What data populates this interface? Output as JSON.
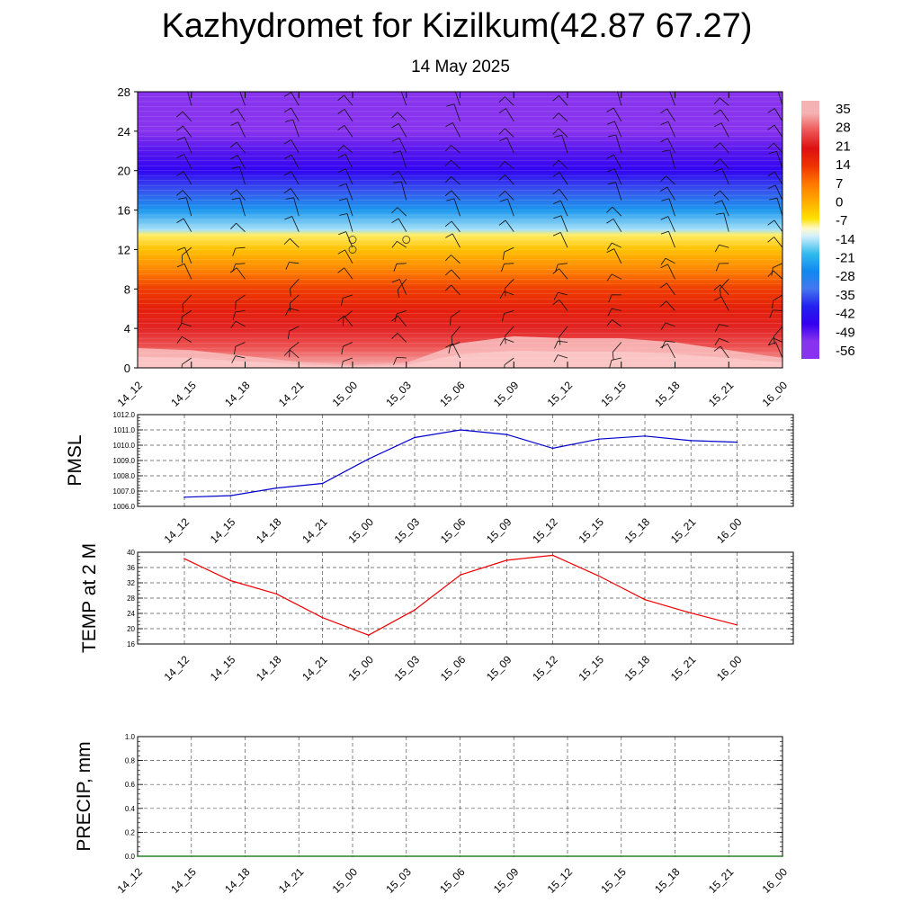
{
  "title": "Kazhydromet for Kizilkum(42.87 67.27)",
  "subtitle": "14 May 2025",
  "chart_data": [
    {
      "type": "heatmap",
      "name": "vertical temperature cross-section",
      "x_ticks": [
        "14_12",
        "14_15",
        "14_18",
        "14_21",
        "15_00",
        "15_03",
        "15_06",
        "15_09",
        "15_12",
        "15_15",
        "15_18",
        "15_21",
        "16_00"
      ],
      "y_ticks": [
        0,
        4,
        8,
        12,
        16,
        20,
        24,
        28
      ],
      "ylim": [
        0,
        28
      ],
      "colorbar_labels": [
        "35",
        "28",
        "21",
        "14",
        "7",
        "0",
        "-7",
        "-14",
        "-21",
        "-28",
        "-35",
        "-42",
        "-49",
        "-56"
      ],
      "colorbar_stops": [
        {
          "value": 35,
          "color": "#f6b2b2"
        },
        {
          "value": 28,
          "color": "#ee5555"
        },
        {
          "value": 21,
          "color": "#dd1111"
        },
        {
          "value": 14,
          "color": "#ee3300"
        },
        {
          "value": 7,
          "color": "#ff7700"
        },
        {
          "value": 0,
          "color": "#ffaa00"
        },
        {
          "value": -7,
          "color": "#ffe000"
        },
        {
          "value": -11,
          "color": "#fffacc"
        },
        {
          "value": -14,
          "color": "#d4f1fb"
        },
        {
          "value": -21,
          "color": "#33bbee"
        },
        {
          "value": -28,
          "color": "#1188ee"
        },
        {
          "value": -35,
          "color": "#4477ee"
        },
        {
          "value": -42,
          "color": "#2222ee"
        },
        {
          "value": -49,
          "color": "#3300f0"
        },
        {
          "value": -56,
          "color": "#8833ee"
        }
      ],
      "temperature_profile": [
        {
          "height": 0,
          "temp": 36
        },
        {
          "height": 2,
          "temp": 28
        },
        {
          "height": 4,
          "temp": 23
        },
        {
          "height": 6,
          "temp": 18
        },
        {
          "height": 8,
          "temp": 13
        },
        {
          "height": 10,
          "temp": 5
        },
        {
          "height": 12,
          "temp": -3
        },
        {
          "height": 13.5,
          "temp": -9
        },
        {
          "height": 14,
          "temp": -16
        },
        {
          "height": 16,
          "temp": -26
        },
        {
          "height": 18,
          "temp": -38
        },
        {
          "height": 20,
          "temp": -48
        },
        {
          "height": 22,
          "temp": -52
        },
        {
          "height": 24,
          "temp": -58
        },
        {
          "height": 28,
          "temp": -60
        }
      ],
      "surface_hot_core": [
        {
          "x_index": 0,
          "warm_depth": 2.0
        },
        {
          "x_index": 1,
          "warm_depth": 1.8
        },
        {
          "x_index": 2,
          "warm_depth": 1.2
        },
        {
          "x_index": 3,
          "warm_depth": 0.6
        },
        {
          "x_index": 4,
          "warm_depth": 0.3
        },
        {
          "x_index": 5,
          "warm_depth": 0.5
        },
        {
          "x_index": 6,
          "warm_depth": 2.5
        },
        {
          "x_index": 7,
          "warm_depth": 3.2
        },
        {
          "x_index": 8,
          "warm_depth": 3.0
        },
        {
          "x_index": 9,
          "warm_depth": 3.0
        },
        {
          "x_index": 10,
          "warm_depth": 2.6
        },
        {
          "x_index": 11,
          "warm_depth": 1.8
        },
        {
          "x_index": 12,
          "warm_depth": 1.0
        }
      ],
      "wind_barbs": "present at every column and level"
    },
    {
      "type": "line",
      "ylabel": "PMSL",
      "x_ticks": [
        "14_12",
        "14_15",
        "14_18",
        "14_21",
        "15_00",
        "15_03",
        "15_06",
        "15_09",
        "15_12",
        "15_15",
        "15_18",
        "15_21",
        "16_00"
      ],
      "y_ticks": [
        "1006.0",
        "1007.0",
        "1008.0",
        "1009.0",
        "1010.0",
        "1011.0",
        "1012.0"
      ],
      "ylim": [
        1006,
        1012
      ],
      "grid": true,
      "series": [
        {
          "color": "#0000cc",
          "values": [
            1006.6,
            1006.7,
            1007.2,
            1007.5,
            1009.1,
            1010.5,
            1011.0,
            1010.7,
            1009.8,
            1010.4,
            1010.6,
            1010.3,
            1010.2
          ]
        }
      ]
    },
    {
      "type": "line",
      "ylabel": "TEMP at 2 M",
      "x_ticks": [
        "14_12",
        "14_15",
        "14_18",
        "14_21",
        "15_00",
        "15_03",
        "15_06",
        "15_09",
        "15_12",
        "15_15",
        "15_18",
        "15_21",
        "16_00"
      ],
      "y_ticks": [
        "16",
        "20",
        "24",
        "28",
        "32",
        "36",
        "40"
      ],
      "ylim": [
        16,
        40
      ],
      "grid": true,
      "series": [
        {
          "color": "#ee0000",
          "values": [
            38.3,
            32.6,
            29.1,
            22.9,
            18.3,
            24.9,
            34.1,
            37.9,
            39.2,
            33.8,
            27.6,
            24.1,
            21.0
          ]
        }
      ]
    },
    {
      "type": "line",
      "ylabel": "PRECIP, mm",
      "x_ticks": [
        "14_12",
        "14_15",
        "14_18",
        "14_21",
        "15_00",
        "15_03",
        "15_06",
        "15_09",
        "15_12",
        "15_15",
        "15_18",
        "15_21",
        "16_00"
      ],
      "y_ticks": [
        "0.0",
        "0.2",
        "0.4",
        "0.6",
        "0.8",
        "1.0"
      ],
      "ylim": [
        0,
        1
      ],
      "grid": true,
      "series": [
        {
          "color": "#006600",
          "values": [
            0,
            0,
            0,
            0,
            0,
            0,
            0,
            0,
            0,
            0,
            0,
            0,
            0
          ]
        }
      ]
    }
  ]
}
